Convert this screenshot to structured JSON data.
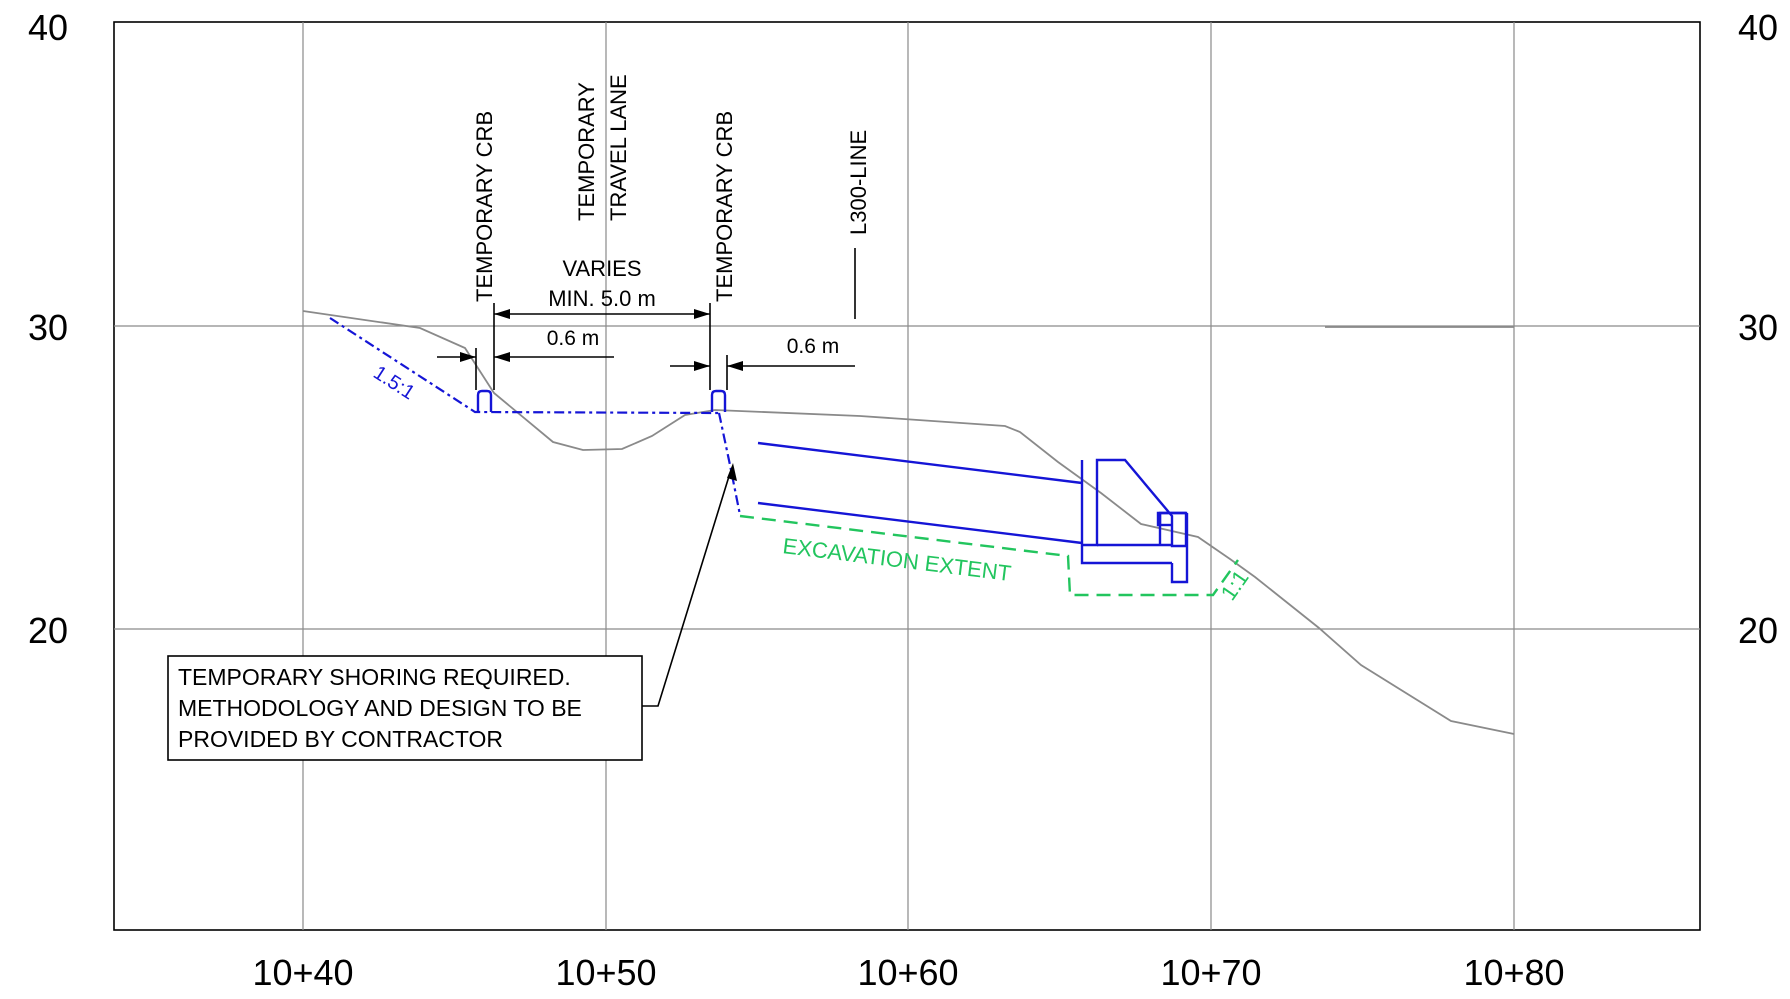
{
  "axes": {
    "x_ticks": [
      "10+40",
      "10+50",
      "10+60",
      "10+70",
      "10+80"
    ],
    "y_ticks_left": [
      "40",
      "30",
      "20"
    ],
    "y_ticks_right": [
      "40",
      "30",
      "20"
    ]
  },
  "labels": {
    "temp_crb_left": "TEMPORARY CRB",
    "temp_lane_line1": "TEMPORARY",
    "temp_lane_line2": "TRAVEL LANE",
    "temp_crb_right": "TEMPORARY CRB",
    "l300_line": "L300-LINE",
    "varies": "VARIES",
    "min_width": "MIN. 5.0 m",
    "dim_left": "0.6 m",
    "dim_right": "0.6 m",
    "slope_blue": "1.5:1",
    "slope_green": "1:1",
    "excavation": "EXCAVATION EXTENT"
  },
  "note": {
    "line1": "TEMPORARY SHORING REQUIRED.",
    "line2": "METHODOLOGY AND DESIGN TO BE",
    "line3": "PROVIDED BY CONTRACTOR"
  },
  "colors": {
    "design": "#1515d6",
    "excavation": "#22c55e",
    "ground": "#8a8a8a"
  }
}
